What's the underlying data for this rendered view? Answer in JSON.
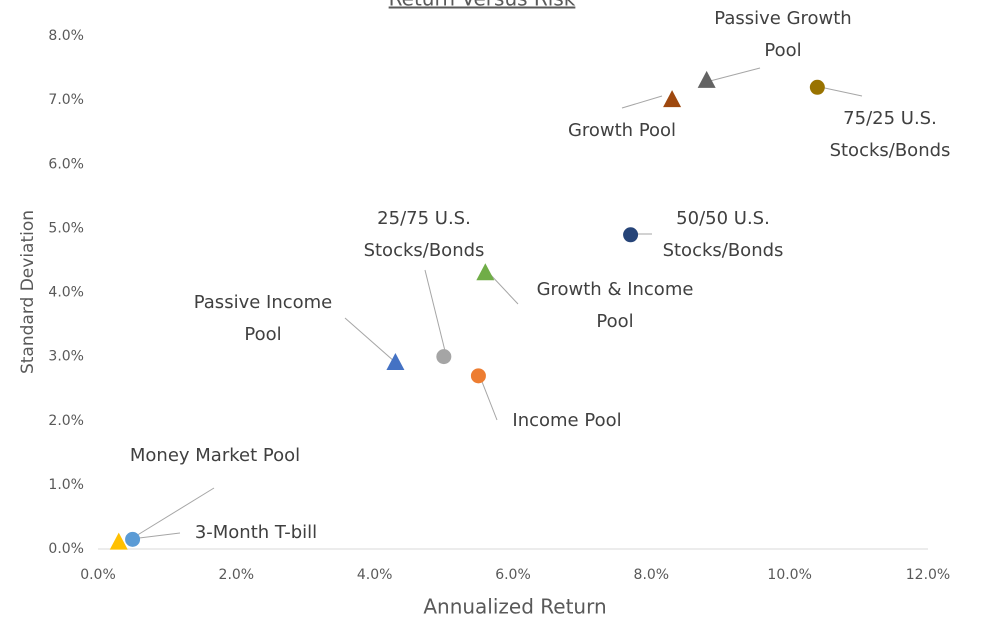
{
  "chart_data": {
    "type": "scatter",
    "title": "Return Versus Risk",
    "x_label": "Annualized Return",
    "y_label": "Standard Deviation",
    "xlim": [
      0,
      12
    ],
    "ylim": [
      0,
      8
    ],
    "xticks": [
      {
        "value": 0,
        "label": "0.0%"
      },
      {
        "value": 2,
        "label": "2.0%"
      },
      {
        "value": 4,
        "label": "4.0%"
      },
      {
        "value": 6,
        "label": "6.0%"
      },
      {
        "value": 8,
        "label": "8.0%"
      },
      {
        "value": 10,
        "label": "10.0%"
      },
      {
        "value": 12,
        "label": "12.0%"
      }
    ],
    "yticks": [
      {
        "value": 0,
        "label": "0.0%"
      },
      {
        "value": 1,
        "label": "1.0%"
      },
      {
        "value": 2,
        "label": "2.0%"
      },
      {
        "value": 3,
        "label": "3.0%"
      },
      {
        "value": 4,
        "label": "4.0%"
      },
      {
        "value": 5,
        "label": "5.0%"
      },
      {
        "value": 6,
        "label": "6.0%"
      },
      {
        "value": 7,
        "label": "7.0%"
      },
      {
        "value": 8,
        "label": "8.0%"
      }
    ],
    "grid": false,
    "series": [
      {
        "name": "Money Market Pool",
        "color": "#ffc000",
        "marker": "triangle",
        "x": [
          0.3
        ],
        "values": [
          0.1
        ]
      },
      {
        "name": "3-Month T-bill",
        "color": "#5b9bd5",
        "marker": "circle",
        "x": [
          0.5
        ],
        "values": [
          0.15
        ]
      },
      {
        "name": "Passive Income Pool",
        "color": "#4472c4",
        "marker": "triangle",
        "x": [
          4.3
        ],
        "values": [
          2.9
        ]
      },
      {
        "name": "25/75 U.S. Stocks/Bonds",
        "color": "#a5a5a5",
        "marker": "circle",
        "x": [
          5.0
        ],
        "values": [
          3.0
        ]
      },
      {
        "name": "Income Pool",
        "color": "#ed7d31",
        "marker": "circle",
        "x": [
          5.5
        ],
        "values": [
          2.7
        ]
      },
      {
        "name": "Growth & Income Pool",
        "color": "#70ad47",
        "marker": "triangle",
        "x": [
          5.6
        ],
        "values": [
          4.3
        ]
      },
      {
        "name": "50/50 U.S. Stocks/Bonds",
        "color": "#264478",
        "marker": "circle",
        "x": [
          7.7
        ],
        "values": [
          4.9
        ]
      },
      {
        "name": "Growth Pool",
        "color": "#9e480e",
        "marker": "triangle",
        "x": [
          8.3
        ],
        "values": [
          7.0
        ]
      },
      {
        "name": "Passive Growth Pool",
        "color": "#636363",
        "marker": "triangle",
        "x": [
          8.8
        ],
        "values": [
          7.3
        ]
      },
      {
        "name": "75/25 U.S. Stocks/Bonds",
        "color": "#997300",
        "marker": "circle",
        "x": [
          10.4
        ],
        "values": [
          7.2
        ]
      }
    ]
  }
}
